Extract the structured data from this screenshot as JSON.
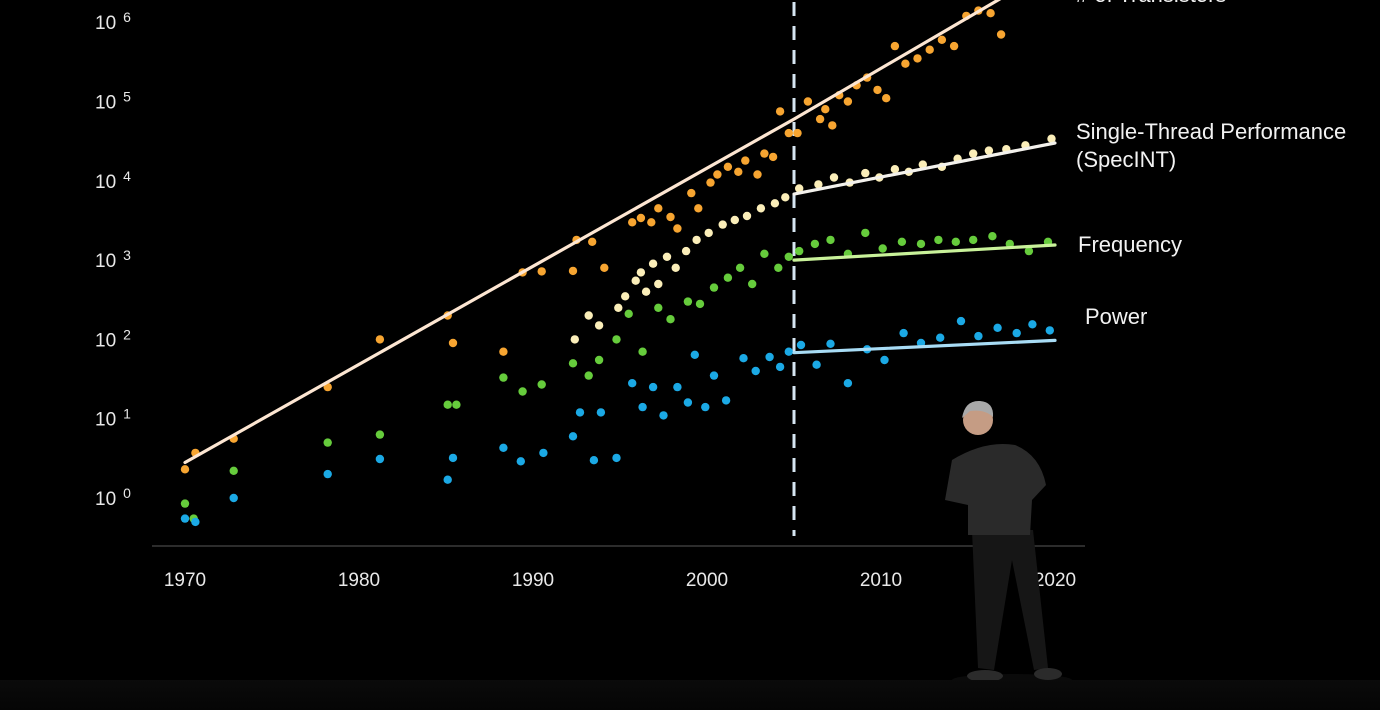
{
  "chart_data": {
    "type": "scatter",
    "title": "",
    "xlabel": "",
    "ylabel": "",
    "y_scale": "log",
    "xlim": [
      1968,
      2022
    ],
    "ylim": [
      0.1,
      3000000
    ],
    "x_ticks": [
      "1970",
      "1980",
      "1990",
      "2000",
      "2010",
      "2020"
    ],
    "x_tick_values": [
      1970,
      1980,
      1990,
      2000,
      2010,
      2020
    ],
    "y_ticks": [
      {
        "base": "10",
        "exp": "0",
        "value": 1
      },
      {
        "base": "10",
        "exp": "1",
        "value": 10
      },
      {
        "base": "10",
        "exp": "2",
        "value": 100
      },
      {
        "base": "10",
        "exp": "3",
        "value": 1000
      },
      {
        "base": "10",
        "exp": "4",
        "value": 10000
      },
      {
        "base": "10",
        "exp": "5",
        "value": 100000
      },
      {
        "base": "10",
        "exp": "6",
        "value": 1000000
      }
    ],
    "divider_year": 2005,
    "series": [
      {
        "name": "# of Transistors",
        "color": "#f7a531",
        "trend_color": "#fde6d2",
        "trend": [
          [
            1970,
            2.8
          ],
          [
            2005,
            60000
          ],
          [
            2020,
            5000000
          ]
        ],
        "points": [
          [
            1970,
            2.3
          ],
          [
            1970.6,
            3.7
          ],
          [
            1972.8,
            5.6
          ],
          [
            1978.2,
            25
          ],
          [
            1981.2,
            100
          ],
          [
            1985.1,
            200
          ],
          [
            1985.4,
            90
          ],
          [
            1988.3,
            70
          ],
          [
            1989.4,
            700
          ],
          [
            1990.5,
            720
          ],
          [
            1992.3,
            730
          ],
          [
            1992.5,
            1800
          ],
          [
            1993.4,
            1700
          ],
          [
            1994.1,
            800
          ],
          [
            1995.7,
            3000
          ],
          [
            1996.2,
            3400
          ],
          [
            1996.8,
            3000
          ],
          [
            1997.2,
            4500
          ],
          [
            1997.9,
            3500
          ],
          [
            1998.3,
            2500
          ],
          [
            1999.1,
            7000
          ],
          [
            1999.5,
            4500
          ],
          [
            2000.2,
            9500
          ],
          [
            2000.6,
            12000
          ],
          [
            2001.2,
            15000
          ],
          [
            2001.8,
            13000
          ],
          [
            2002.2,
            18000
          ],
          [
            2002.9,
            12000
          ],
          [
            2003.3,
            22000
          ],
          [
            2003.8,
            20000
          ],
          [
            2004.2,
            75000
          ],
          [
            2004.7,
            40000
          ],
          [
            2005.2,
            40000
          ],
          [
            2005.8,
            100000
          ],
          [
            2006.5,
            60000
          ],
          [
            2006.8,
            80000
          ],
          [
            2007.2,
            50000
          ],
          [
            2007.6,
            120000
          ],
          [
            2008.1,
            100000
          ],
          [
            2008.6,
            160000
          ],
          [
            2009.2,
            200000
          ],
          [
            2009.8,
            140000
          ],
          [
            2010.3,
            110000
          ],
          [
            2010.8,
            500000
          ],
          [
            2011.4,
            300000
          ],
          [
            2012.1,
            350000
          ],
          [
            2012.8,
            450000
          ],
          [
            2013.5,
            600000
          ],
          [
            2014.2,
            500000
          ],
          [
            2014.9,
            1200000
          ],
          [
            2015.6,
            1400000
          ],
          [
            2016.3,
            1300000
          ],
          [
            2016.9,
            700000
          ],
          [
            2017.8,
            2200000
          ]
        ]
      },
      {
        "name": "Single-Thread Performance",
        "name_line2": "(SpecINT)",
        "color": "#fbeeb9",
        "trend_color": "#f3f1ec",
        "trend": [
          [
            2005,
            6800
          ],
          [
            2020,
            30000
          ]
        ],
        "points": [
          [
            1992.4,
            100
          ],
          [
            1993.2,
            200
          ],
          [
            1993.8,
            150
          ],
          [
            1994.9,
            250
          ],
          [
            1995.3,
            350
          ],
          [
            1995.9,
            550
          ],
          [
            1996.2,
            700
          ],
          [
            1996.5,
            400
          ],
          [
            1996.9,
            900
          ],
          [
            1997.2,
            500
          ],
          [
            1997.7,
            1100
          ],
          [
            1998.2,
            800
          ],
          [
            1998.8,
            1300
          ],
          [
            1999.4,
            1800
          ],
          [
            2000.1,
            2200
          ],
          [
            2000.9,
            2800
          ],
          [
            2001.6,
            3200
          ],
          [
            2002.3,
            3600
          ],
          [
            2003.1,
            4500
          ],
          [
            2003.9,
            5200
          ],
          [
            2004.5,
            6200
          ],
          [
            2005.3,
            8000
          ],
          [
            2006.4,
            9000
          ],
          [
            2007.3,
            11000
          ],
          [
            2008.2,
            9500
          ],
          [
            2009.1,
            12500
          ],
          [
            2009.9,
            11000
          ],
          [
            2010.8,
            14000
          ],
          [
            2011.6,
            13000
          ],
          [
            2012.4,
            16000
          ],
          [
            2013.5,
            15000
          ],
          [
            2014.4,
            19000
          ],
          [
            2015.3,
            22000
          ],
          [
            2016.2,
            24000
          ],
          [
            2017.2,
            25000
          ],
          [
            2018.3,
            28000
          ],
          [
            2019.8,
            34000
          ]
        ]
      },
      {
        "name": "Frequency",
        "color": "#66cc3c",
        "trend_color": "#c9f29a",
        "trend": [
          [
            2005,
            1000
          ],
          [
            2020,
            1550
          ]
        ],
        "points": [
          [
            1970,
            0.85
          ],
          [
            1970.5,
            0.55
          ],
          [
            1972.8,
            2.2
          ],
          [
            1978.2,
            5
          ],
          [
            1981.2,
            6.3
          ],
          [
            1985.1,
            15
          ],
          [
            1985.6,
            15
          ],
          [
            1988.3,
            33
          ],
          [
            1989.4,
            22
          ],
          [
            1990.5,
            27
          ],
          [
            1992.3,
            50
          ],
          [
            1993.2,
            35
          ],
          [
            1993.8,
            55
          ],
          [
            1994.8,
            100
          ],
          [
            1995.5,
            210
          ],
          [
            1996.3,
            70
          ],
          [
            1997.2,
            250
          ],
          [
            1997.9,
            180
          ],
          [
            1998.9,
            300
          ],
          [
            1999.6,
            280
          ],
          [
            2000.4,
            450
          ],
          [
            2001.2,
            600
          ],
          [
            2001.9,
            800
          ],
          [
            2002.6,
            500
          ],
          [
            2003.3,
            1200
          ],
          [
            2004.1,
            800
          ],
          [
            2004.7,
            1100
          ],
          [
            2005.3,
            1300
          ],
          [
            2006.2,
            1600
          ],
          [
            2007.1,
            1800
          ],
          [
            2008.1,
            1200
          ],
          [
            2009.1,
            2200
          ],
          [
            2010.1,
            1400
          ],
          [
            2011.2,
            1700
          ],
          [
            2012.3,
            1600
          ],
          [
            2013.3,
            1800
          ],
          [
            2014.3,
            1700
          ],
          [
            2015.3,
            1800
          ],
          [
            2016.4,
            2000
          ],
          [
            2017.4,
            1600
          ],
          [
            2018.5,
            1300
          ],
          [
            2019.6,
            1700
          ]
        ]
      },
      {
        "name": "Power",
        "color": "#1ba9e5",
        "trend_color": "#a8dcf5",
        "trend": [
          [
            2005,
            68
          ],
          [
            2020,
            97
          ]
        ],
        "points": [
          [
            1970,
            0.55
          ],
          [
            1970.6,
            0.5
          ],
          [
            1972.8,
            1
          ],
          [
            1978.2,
            2
          ],
          [
            1981.2,
            3.1
          ],
          [
            1985.1,
            1.7
          ],
          [
            1985.4,
            3.2
          ],
          [
            1988.3,
            4.3
          ],
          [
            1989.3,
            2.9
          ],
          [
            1990.6,
            3.7
          ],
          [
            1992.3,
            6
          ],
          [
            1992.7,
            12
          ],
          [
            1993.5,
            3
          ],
          [
            1993.9,
            12
          ],
          [
            1994.8,
            3.2
          ],
          [
            1995.7,
            28
          ],
          [
            1996.3,
            14
          ],
          [
            1996.9,
            25
          ],
          [
            1997.5,
            11
          ],
          [
            1998.3,
            25
          ],
          [
            1998.9,
            16
          ],
          [
            1999.3,
            64
          ],
          [
            1999.9,
            14
          ],
          [
            2000.4,
            35
          ],
          [
            2001.1,
            17
          ],
          [
            2002.1,
            58
          ],
          [
            2002.8,
            40
          ],
          [
            2003.6,
            60
          ],
          [
            2004.2,
            45
          ],
          [
            2004.7,
            70
          ],
          [
            2005.4,
            85
          ],
          [
            2006.3,
            48
          ],
          [
            2007.1,
            88
          ],
          [
            2008.1,
            28
          ],
          [
            2009.2,
            75
          ],
          [
            2010.2,
            55
          ],
          [
            2011.3,
            120
          ],
          [
            2012.3,
            90
          ],
          [
            2013.4,
            105
          ],
          [
            2014.6,
            170
          ],
          [
            2015.6,
            110
          ],
          [
            2016.7,
            140
          ],
          [
            2017.8,
            120
          ],
          [
            2018.7,
            155
          ],
          [
            2019.7,
            130
          ]
        ]
      }
    ]
  }
}
